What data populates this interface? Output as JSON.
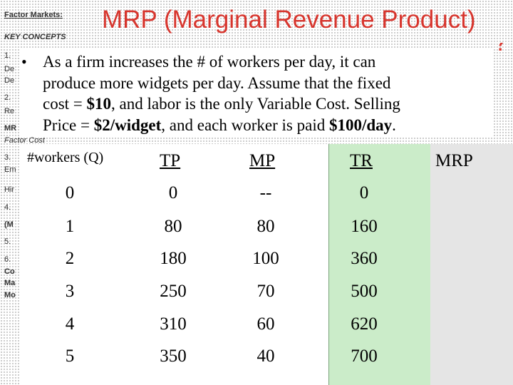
{
  "slide": {
    "title": "MRP (Marginal Revenue Product)",
    "title_overflow_glyph": "?"
  },
  "sidebar": {
    "section_title": "Factor Markets:",
    "key_concepts": "KEY CONCEPTS",
    "visible_fragments": [
      "1.",
      "De",
      "De",
      "2.",
      "Re",
      "MR",
      "Factor Cost",
      "3.",
      "Em",
      "Hir",
      "4.",
      "(M",
      "5.",
      "6.",
      "Co",
      "Ma",
      "Mo"
    ]
  },
  "bullet": {
    "line1": "As a firm increases the # of workers per day, it can",
    "line2": "produce more widgets per day.  Assume that the fixed",
    "line3_pre": "cost = ",
    "fixed_cost": "$10",
    "line3_post": ", and labor is the only Variable Cost.  Selling",
    "line4_pre": "Price = ",
    "price": "$2/widget",
    "line4_mid": ", and each worker is paid ",
    "wage": "$100/day",
    "line4_post": "."
  },
  "table": {
    "headers": {
      "q": "#workers (Q)",
      "tp": "TP",
      "mp": "MP",
      "tr": "TR",
      "mrp": "MRP"
    },
    "rows": [
      {
        "q": "0",
        "tp": "0",
        "mp": "--",
        "tr": "0",
        "mrp": ""
      },
      {
        "q": "1",
        "tp": "80",
        "mp": "80",
        "tr": "160",
        "mrp": ""
      },
      {
        "q": "2",
        "tp": "180",
        "mp": "100",
        "tr": "360",
        "mrp": ""
      },
      {
        "q": "3",
        "tp": "250",
        "mp": "70",
        "tr": "500",
        "mrp": ""
      },
      {
        "q": "4",
        "tp": "310",
        "mp": "60",
        "tr": "620",
        "mrp": ""
      },
      {
        "q": "5",
        "tp": "350",
        "mp": "40",
        "tr": "700",
        "mrp": ""
      }
    ]
  },
  "colors": {
    "title": "#d7352d",
    "tr_highlight": "#cbecc9",
    "mrp_column": "#e5e5e5"
  }
}
